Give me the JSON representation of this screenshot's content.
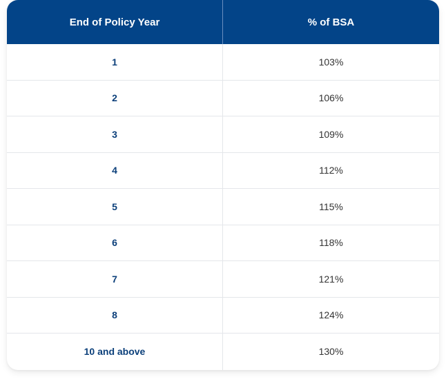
{
  "table": {
    "headers": {
      "year": "End of Policy Year",
      "pct": "% of BSA"
    },
    "rows": [
      {
        "year": "1",
        "pct": "103%"
      },
      {
        "year": "2",
        "pct": "106%"
      },
      {
        "year": "3",
        "pct": "109%"
      },
      {
        "year": "4",
        "pct": "112%"
      },
      {
        "year": "5",
        "pct": "115%"
      },
      {
        "year": "6",
        "pct": "118%"
      },
      {
        "year": "7",
        "pct": "121%"
      },
      {
        "year": "8",
        "pct": "124%"
      },
      {
        "year": "10 and above",
        "pct": "130%"
      }
    ]
  },
  "colors": {
    "header_bg": "#034488",
    "year_text": "#0b3f7a",
    "pct_text": "#333333",
    "divider": "#e4e6ea"
  }
}
